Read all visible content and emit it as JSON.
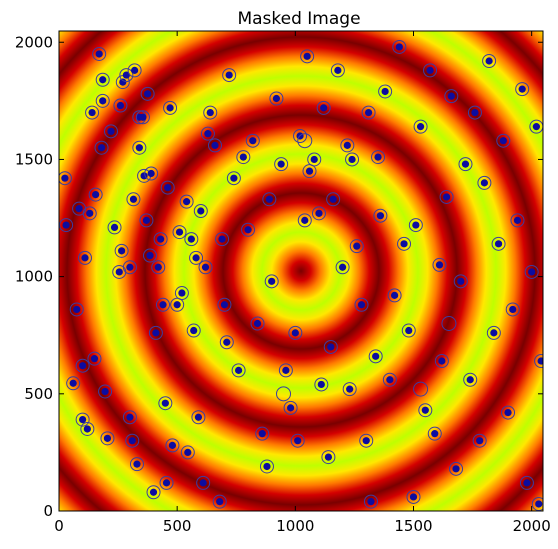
{
  "chart_data": {
    "type": "heatmap",
    "title": "Masked Image",
    "xlabel": "",
    "ylabel": "",
    "xlim": [
      0,
      2048
    ],
    "ylim": [
      0,
      2048
    ],
    "x_ticks": [
      0,
      500,
      1000,
      1500,
      2000
    ],
    "y_ticks": [
      0,
      500,
      1000,
      1500,
      2000
    ],
    "image": {
      "description_of_field": "concentric ring pattern",
      "center": [
        1024,
        1024
      ],
      "ring_period": 330,
      "colormap": "hot-yellow-green",
      "colors": [
        "#7a0000",
        "#d40000",
        "#ff7a00",
        "#ffe800",
        "#bfff00"
      ]
    },
    "markers": {
      "fill_color": "#0c0ca0",
      "ring_color": "#3c3ca0",
      "points": [
        [
          25,
          1420
        ],
        [
          30,
          1220
        ],
        [
          60,
          545
        ],
        [
          75,
          860
        ],
        [
          85,
          1290
        ],
        [
          100,
          620
        ],
        [
          100,
          390
        ],
        [
          110,
          1080
        ],
        [
          120,
          350
        ],
        [
          130,
          1270
        ],
        [
          140,
          1700
        ],
        [
          150,
          650
        ],
        [
          155,
          1350
        ],
        [
          170,
          1950
        ],
        [
          180,
          1550
        ],
        [
          185,
          1840
        ],
        [
          185,
          1750
        ],
        [
          195,
          510
        ],
        [
          205,
          310
        ],
        [
          220,
          1620
        ],
        [
          235,
          1210
        ],
        [
          255,
          1020
        ],
        [
          260,
          1730
        ],
        [
          265,
          1110
        ],
        [
          270,
          1830
        ],
        [
          285,
          1860
        ],
        [
          300,
          400
        ],
        [
          300,
          1040
        ],
        [
          310,
          300
        ],
        [
          315,
          1330
        ],
        [
          320,
          1880
        ],
        [
          330,
          200
        ],
        [
          340,
          1680
        ],
        [
          340,
          1550
        ],
        [
          355,
          1680
        ],
        [
          360,
          1430
        ],
        [
          370,
          1240
        ],
        [
          375,
          1780
        ],
        [
          385,
          1090
        ],
        [
          390,
          1440
        ],
        [
          400,
          80
        ],
        [
          410,
          760
        ],
        [
          420,
          1040
        ],
        [
          430,
          1160
        ],
        [
          440,
          880
        ],
        [
          450,
          460
        ],
        [
          455,
          120
        ],
        [
          460,
          1380
        ],
        [
          470,
          1720
        ],
        [
          480,
          280
        ],
        [
          500,
          880
        ],
        [
          510,
          1190
        ],
        [
          520,
          930
        ],
        [
          540,
          1320
        ],
        [
          545,
          250
        ],
        [
          560,
          1160
        ],
        [
          570,
          770
        ],
        [
          580,
          1080
        ],
        [
          590,
          400
        ],
        [
          600,
          1280
        ],
        [
          610,
          120
        ],
        [
          620,
          1040
        ],
        [
          630,
          1610
        ],
        [
          640,
          1700
        ],
        [
          660,
          1560
        ],
        [
          680,
          40
        ],
        [
          690,
          1160
        ],
        [
          700,
          880
        ],
        [
          710,
          720
        ],
        [
          720,
          1860
        ],
        [
          740,
          1420
        ],
        [
          760,
          600
        ],
        [
          780,
          1510
        ],
        [
          800,
          1200
        ],
        [
          820,
          1580
        ],
        [
          840,
          800
        ],
        [
          860,
          330
        ],
        [
          880,
          190
        ],
        [
          890,
          1330
        ],
        [
          900,
          980
        ],
        [
          920,
          1760
        ],
        [
          940,
          1480
        ],
        [
          960,
          600
        ],
        [
          980,
          440
        ],
        [
          1000,
          760
        ],
        [
          1010,
          300
        ],
        [
          1020,
          1600
        ],
        [
          1040,
          1240
        ],
        [
          1050,
          1940
        ],
        [
          1060,
          1450
        ],
        [
          1080,
          1500
        ],
        [
          1100,
          1270
        ],
        [
          1110,
          540
        ],
        [
          1120,
          1720
        ],
        [
          1140,
          230
        ],
        [
          1150,
          700
        ],
        [
          1160,
          1330
        ],
        [
          1180,
          1880
        ],
        [
          1200,
          1040
        ],
        [
          1220,
          1560
        ],
        [
          1230,
          520
        ],
        [
          1240,
          1500
        ],
        [
          1260,
          1130
        ],
        [
          1280,
          880
        ],
        [
          1300,
          300
        ],
        [
          1310,
          1700
        ],
        [
          1320,
          40
        ],
        [
          1340,
          660
        ],
        [
          1350,
          1510
        ],
        [
          1360,
          1260
        ],
        [
          1380,
          1790
        ],
        [
          1400,
          560
        ],
        [
          1420,
          920
        ],
        [
          1440,
          1980
        ],
        [
          1460,
          1140
        ],
        [
          1480,
          770
        ],
        [
          1500,
          60
        ],
        [
          1510,
          1220
        ],
        [
          1530,
          1640
        ],
        [
          1550,
          430
        ],
        [
          1570,
          1880
        ],
        [
          1590,
          330
        ],
        [
          1610,
          1050
        ],
        [
          1620,
          640
        ],
        [
          1640,
          1340
        ],
        [
          1660,
          1770
        ],
        [
          1680,
          180
        ],
        [
          1700,
          980
        ],
        [
          1720,
          1480
        ],
        [
          1740,
          560
        ],
        [
          1760,
          1700
        ],
        [
          1780,
          300
        ],
        [
          1800,
          1400
        ],
        [
          1820,
          1920
        ],
        [
          1840,
          760
        ],
        [
          1860,
          1140
        ],
        [
          1880,
          1580
        ],
        [
          1900,
          420
        ],
        [
          1920,
          860
        ],
        [
          1940,
          1240
        ],
        [
          1960,
          1800
        ],
        [
          1980,
          120
        ],
        [
          2000,
          1020
        ],
        [
          2020,
          1640
        ],
        [
          2030,
          30
        ],
        [
          2040,
          640
        ]
      ],
      "empty_rings": [
        [
          1650,
          800
        ],
        [
          1040,
          1580
        ],
        [
          1530,
          520
        ],
        [
          950,
          500
        ]
      ]
    }
  }
}
